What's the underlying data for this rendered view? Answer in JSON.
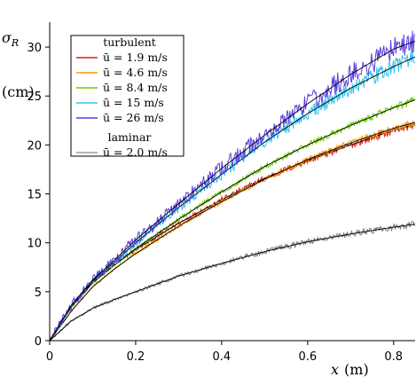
{
  "chart_data": {
    "type": "line",
    "ylabel": "σ",
    "ylabel_subscript": "R",
    "yunit": "(cm)",
    "xlabel": "x",
    "xunit": "(m)",
    "xlim": [
      0,
      0.85
    ],
    "ylim": [
      0,
      32
    ],
    "xticks": [
      0,
      0.2,
      0.4,
      0.6,
      0.8
    ],
    "xtick_labels": [
      "0",
      "0.2",
      "0.4",
      "0.6",
      "0.8"
    ],
    "yticks": [
      0,
      5,
      10,
      15,
      20,
      25,
      30
    ],
    "ytick_labels": [
      "0",
      "5",
      "10",
      "15",
      "20",
      "25",
      "30"
    ],
    "grid": false,
    "legend": {
      "placement": "top-left",
      "groups": [
        {
          "title": "turbulent",
          "entries": [
            {
              "label": "ū = 1.9 m/s",
              "color": "#e31a1c"
            },
            {
              "label": "ū = 4.6 m/s",
              "color": "#f59f00"
            },
            {
              "label": "ū = 8.4 m/s",
              "color": "#66cc00"
            },
            {
              "label": "ū = 15 m/s",
              "color": "#33c3f0"
            },
            {
              "label": "ū = 26 m/s",
              "color": "#5b3fe0"
            }
          ]
        },
        {
          "title": "laminar",
          "entries": [
            {
              "label": "ū = 2.0 m/s",
              "color": "#9e9e9e"
            }
          ]
        }
      ]
    },
    "fit_color": "#000000",
    "series": [
      {
        "name": "ū = 1.9 m/s",
        "color": "#e31a1c",
        "noise": 0.45,
        "x": [
          0,
          0.05,
          0.1,
          0.15,
          0.2,
          0.3,
          0.4,
          0.5,
          0.6,
          0.7,
          0.8,
          0.85
        ],
        "y": [
          0,
          3.5,
          6.0,
          7.8,
          9.3,
          12.0,
          14.4,
          16.6,
          18.4,
          20.0,
          21.5,
          22.1
        ]
      },
      {
        "name": "ū = 4.6 m/s",
        "color": "#f59f00",
        "noise": 0.35,
        "x": [
          0,
          0.05,
          0.1,
          0.15,
          0.2,
          0.3,
          0.4,
          0.5,
          0.6,
          0.7,
          0.8,
          0.85
        ],
        "y": [
          0,
          3.0,
          5.5,
          7.3,
          8.9,
          11.7,
          14.2,
          16.5,
          18.5,
          20.2,
          21.7,
          22.3
        ]
      },
      {
        "name": "ū = 8.4 m/s",
        "color": "#66cc00",
        "noise": 0.4,
        "x": [
          0,
          0.05,
          0.1,
          0.15,
          0.2,
          0.3,
          0.4,
          0.5,
          0.6,
          0.7,
          0.8,
          0.85
        ],
        "y": [
          0,
          3.4,
          5.9,
          7.7,
          9.4,
          12.4,
          15.2,
          17.8,
          20.0,
          22.0,
          23.8,
          24.6
        ]
      },
      {
        "name": "ū = 15 m/s",
        "color": "#33c3f0",
        "noise": 0.9,
        "x": [
          0,
          0.05,
          0.1,
          0.15,
          0.2,
          0.3,
          0.4,
          0.5,
          0.6,
          0.7,
          0.8,
          0.85
        ],
        "y": [
          0,
          3.5,
          6.1,
          8.0,
          10.0,
          13.6,
          17.0,
          20.3,
          23.2,
          25.8,
          28.0,
          29.0
        ]
      },
      {
        "name": "ū = 26 m/s",
        "color": "#5b3fe0",
        "noise": 1.3,
        "x": [
          0,
          0.05,
          0.1,
          0.15,
          0.2,
          0.3,
          0.4,
          0.5,
          0.6,
          0.7,
          0.8,
          0.85
        ],
        "y": [
          0,
          3.6,
          6.2,
          8.2,
          10.3,
          14.0,
          17.6,
          21.0,
          24.2,
          27.2,
          29.8,
          30.6
        ]
      },
      {
        "name": "ū = 2.0 m/s",
        "color": "#7a7a7a",
        "noise": 0.35,
        "x": [
          0,
          0.05,
          0.1,
          0.15,
          0.2,
          0.3,
          0.4,
          0.5,
          0.6,
          0.7,
          0.8,
          0.85
        ],
        "y": [
          0,
          2.0,
          3.3,
          4.2,
          5.0,
          6.6,
          7.9,
          9.1,
          10.1,
          10.9,
          11.6,
          11.9
        ]
      }
    ]
  }
}
